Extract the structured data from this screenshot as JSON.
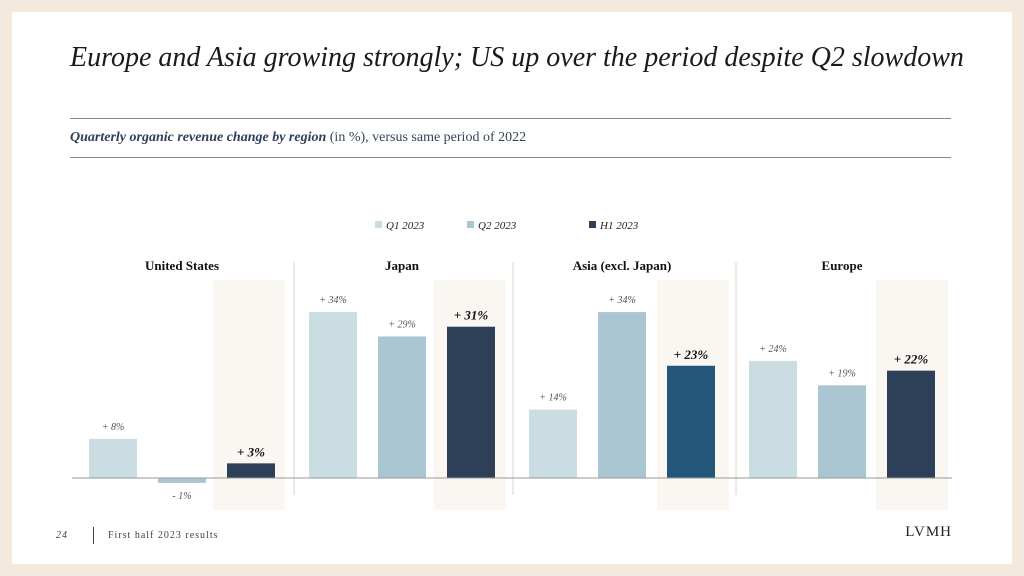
{
  "title": "Europe and Asia growing strongly; US up over the period despite Q2 slowdown",
  "subtitle": {
    "bold": "Quarterly organic revenue change by region",
    "rest": " (in %), versus same period of 2022"
  },
  "footer": {
    "page": "24",
    "label": "First half 2023 results",
    "logo": "LVMH"
  },
  "colors": {
    "Q1": "#c9dde3",
    "Q2": "#a9c6d2",
    "H1": "#2e3f58",
    "H1_asia": "#22577a",
    "highlight": "#faf6f1"
  },
  "chart_data": {
    "type": "bar",
    "series_names": [
      "Q1 2023",
      "Q2 2023",
      "H1 2023"
    ],
    "categories": [
      "United States",
      "Japan",
      "Asia (excl. Japan)",
      "Europe"
    ],
    "series": [
      {
        "name": "Q1 2023",
        "values": [
          8,
          34,
          14,
          24
        ],
        "labels": [
          "+ 8%",
          "+ 34%",
          "+ 14%",
          "+ 24%"
        ]
      },
      {
        "name": "Q2 2023",
        "values": [
          -1,
          29,
          34,
          19
        ],
        "labels": [
          "- 1%",
          "+ 29%",
          "+ 34%",
          "+ 19%"
        ]
      },
      {
        "name": "H1 2023",
        "values": [
          3,
          31,
          23,
          22
        ],
        "labels": [
          "+ 3%",
          "+ 31%",
          "+ 23%",
          "+ 22%"
        ]
      }
    ],
    "legend": "top-center",
    "ylabel": "%"
  }
}
